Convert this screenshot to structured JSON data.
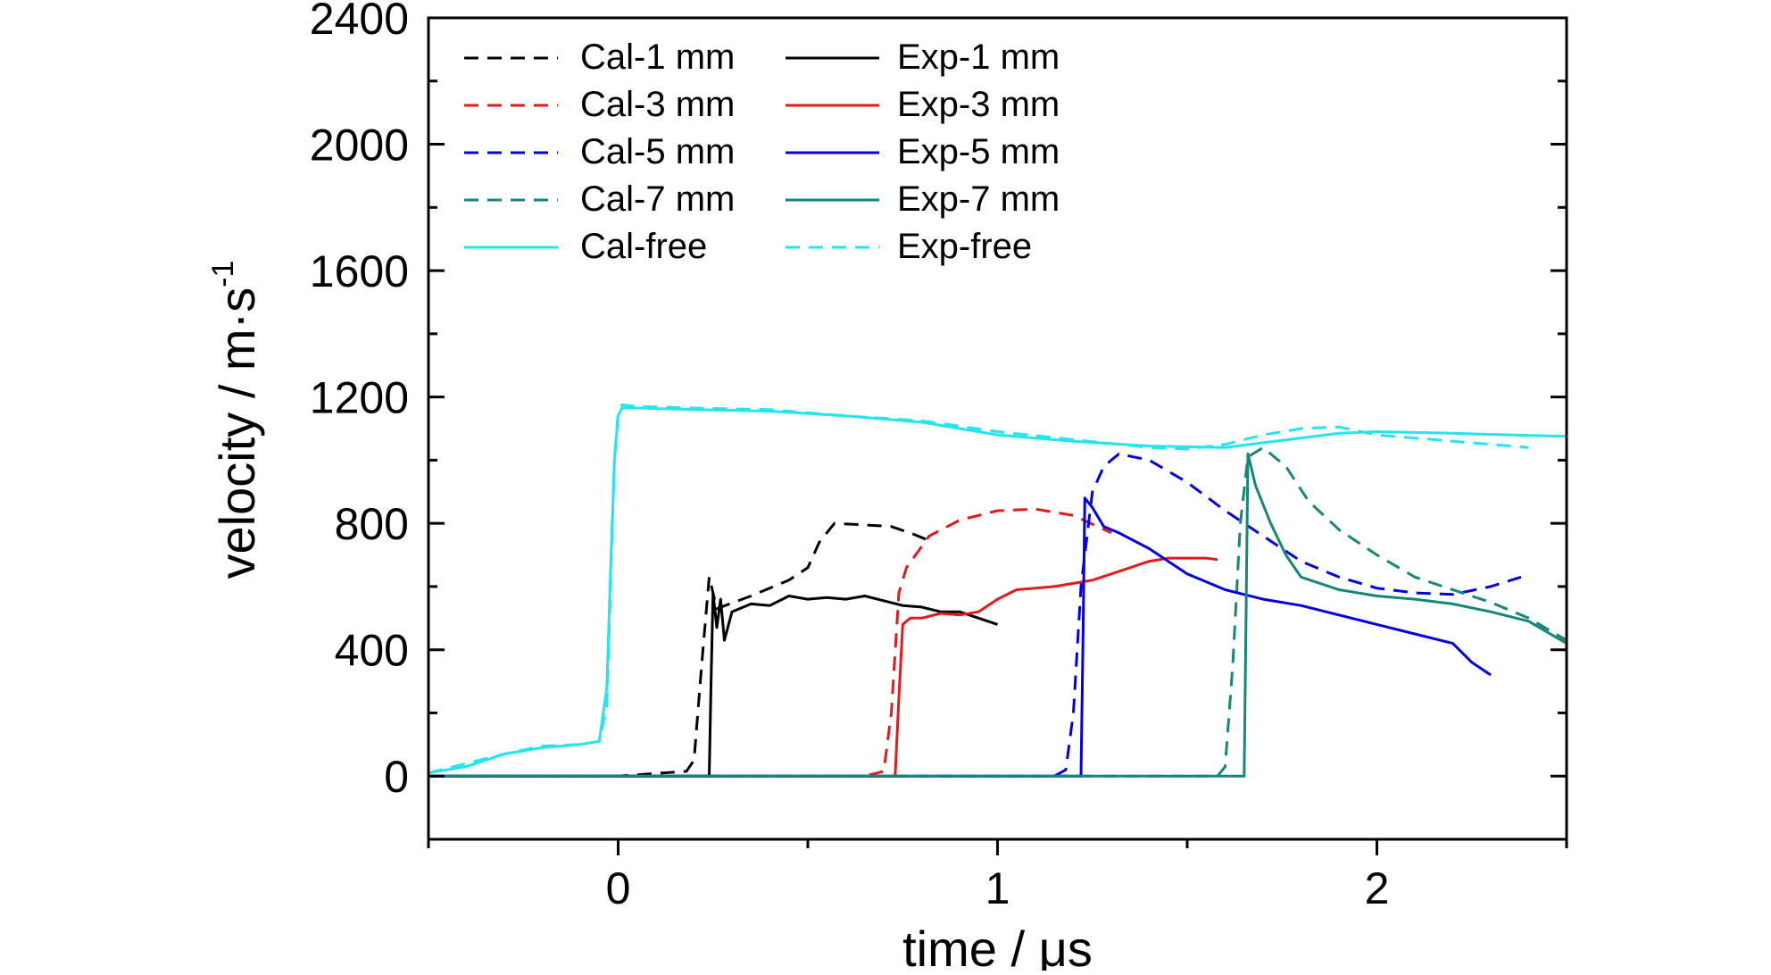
{
  "chart_data": {
    "type": "line",
    "xlabel": "time / μs",
    "ylabel": "velocity / m·s",
    "ylabel_superscript": "-1",
    "xlim": [
      -0.5,
      2.5
    ],
    "ylim": [
      -200,
      2400
    ],
    "xticks": [
      0,
      1,
      2
    ],
    "xtick_labels": [
      "0",
      "1",
      "2"
    ],
    "yticks": [
      0,
      400,
      800,
      1200,
      1600,
      2000,
      2400
    ],
    "ytick_labels": [
      "0",
      "400",
      "800",
      "1200",
      "1600",
      "2000",
      "2400"
    ],
    "grid": false,
    "legend_position": "top-left",
    "series": [
      {
        "name": "Cal-1 mm",
        "color": "#000000",
        "style": "dashed",
        "x": [
          -0.5,
          0.0,
          0.18,
          0.2,
          0.22,
          0.24,
          0.26,
          0.35,
          0.45,
          0.5,
          0.53,
          0.57,
          0.65,
          0.72,
          0.78,
          0.82
        ],
        "y": [
          0,
          0,
          15,
          50,
          350,
          630,
          530,
          570,
          620,
          660,
          740,
          800,
          795,
          790,
          765,
          745
        ]
      },
      {
        "name": "Cal-3 mm",
        "color": "#e31a1c",
        "style": "dashed",
        "x": [
          -0.5,
          0.65,
          0.7,
          0.72,
          0.74,
          0.76,
          0.82,
          0.9,
          1.0,
          1.1,
          1.2,
          1.3
        ],
        "y": [
          0,
          0,
          15,
          200,
          580,
          660,
          760,
          810,
          840,
          845,
          825,
          770
        ]
      },
      {
        "name": "Cal-5 mm",
        "color": "#0000e0",
        "style": "dashed",
        "x": [
          -0.5,
          1.15,
          1.18,
          1.2,
          1.22,
          1.25,
          1.28,
          1.32,
          1.4,
          1.5,
          1.6,
          1.7,
          1.8,
          1.9,
          2.0,
          2.1,
          2.2,
          2.3,
          2.38
        ],
        "y": [
          0,
          0,
          20,
          200,
          600,
          900,
          980,
          1020,
          1000,
          930,
          840,
          760,
          680,
          630,
          595,
          580,
          575,
          600,
          630
        ]
      },
      {
        "name": "Cal-7 mm",
        "color": "#15877a",
        "style": "dashed",
        "x": [
          -0.5,
          1.58,
          1.6,
          1.62,
          1.64,
          1.66,
          1.7,
          1.76,
          1.82,
          1.9,
          2.0,
          2.1,
          2.2,
          2.3,
          2.4,
          2.5
        ],
        "y": [
          0,
          0,
          30,
          350,
          800,
          1010,
          1040,
          980,
          870,
          780,
          700,
          630,
          590,
          550,
          500,
          430
        ]
      },
      {
        "name": "Cal-free",
        "color": "#22e5ee",
        "style": "solid",
        "x": [
          -0.5,
          -0.4,
          -0.3,
          -0.2,
          -0.1,
          -0.05,
          -0.03,
          -0.02,
          -0.01,
          0.0,
          0.01,
          0.05,
          0.2,
          0.4,
          0.6,
          0.8,
          1.0,
          1.2,
          1.4,
          1.6,
          1.7,
          1.8,
          1.9,
          2.0,
          2.2,
          2.5
        ],
        "y": [
          10,
          30,
          70,
          90,
          100,
          110,
          280,
          650,
          1000,
          1140,
          1165,
          1165,
          1160,
          1155,
          1140,
          1120,
          1080,
          1060,
          1045,
          1040,
          1055,
          1070,
          1085,
          1090,
          1085,
          1075
        ]
      },
      {
        "name": "Exp-1 mm",
        "color": "#000000",
        "style": "solid",
        "x": [
          -0.5,
          0.24,
          0.245,
          0.25,
          0.26,
          0.27,
          0.28,
          0.3,
          0.35,
          0.4,
          0.45,
          0.5,
          0.55,
          0.6,
          0.65,
          0.7,
          0.75,
          0.8,
          0.85,
          0.9,
          0.95,
          1.0
        ],
        "y": [
          0,
          0,
          300,
          580,
          470,
          560,
          430,
          520,
          545,
          540,
          570,
          560,
          565,
          560,
          570,
          555,
          540,
          535,
          520,
          520,
          500,
          480
        ]
      },
      {
        "name": "Exp-3 mm",
        "color": "#e31a1c",
        "style": "solid",
        "x": [
          -0.5,
          0.73,
          0.74,
          0.75,
          0.77,
          0.8,
          0.85,
          0.9,
          0.95,
          1.0,
          1.05,
          1.1,
          1.15,
          1.2,
          1.25,
          1.3,
          1.35,
          1.4,
          1.45,
          1.5,
          1.55,
          1.58
        ],
        "y": [
          0,
          0,
          250,
          480,
          500,
          500,
          515,
          510,
          520,
          560,
          590,
          595,
          600,
          610,
          620,
          640,
          660,
          680,
          690,
          690,
          690,
          685
        ]
      },
      {
        "name": "Exp-5 mm",
        "color": "#0000e0",
        "style": "solid",
        "x": [
          -0.5,
          1.22,
          1.225,
          1.23,
          1.25,
          1.28,
          1.32,
          1.4,
          1.5,
          1.6,
          1.7,
          1.8,
          1.9,
          2.0,
          2.1,
          2.2,
          2.25,
          2.3
        ],
        "y": [
          0,
          0,
          400,
          880,
          850,
          790,
          770,
          720,
          640,
          590,
          560,
          540,
          510,
          480,
          450,
          420,
          360,
          320
        ]
      },
      {
        "name": "Exp-7 mm",
        "color": "#15877a",
        "style": "solid",
        "x": [
          -0.5,
          1.65,
          1.655,
          1.66,
          1.68,
          1.72,
          1.76,
          1.8,
          1.9,
          2.0,
          2.1,
          2.2,
          2.3,
          2.4,
          2.5
        ],
        "y": [
          0,
          0,
          500,
          1020,
          920,
          800,
          700,
          630,
          590,
          570,
          560,
          545,
          520,
          490,
          420
        ]
      },
      {
        "name": "Exp-free",
        "color": "#22e5ee",
        "style": "dashed",
        "x": [
          -0.5,
          -0.4,
          -0.3,
          -0.2,
          -0.1,
          -0.05,
          -0.03,
          -0.02,
          -0.01,
          0.0,
          0.01,
          0.05,
          0.2,
          0.4,
          0.6,
          0.8,
          1.0,
          1.2,
          1.4,
          1.5,
          1.6,
          1.7,
          1.8,
          1.9,
          2.0,
          2.2,
          2.4
        ],
        "y": [
          10,
          40,
          70,
          95,
          100,
          110,
          220,
          600,
          1000,
          1150,
          1175,
          1170,
          1165,
          1160,
          1140,
          1125,
          1090,
          1065,
          1040,
          1035,
          1050,
          1080,
          1100,
          1105,
          1080,
          1060,
          1040
        ]
      }
    ]
  }
}
